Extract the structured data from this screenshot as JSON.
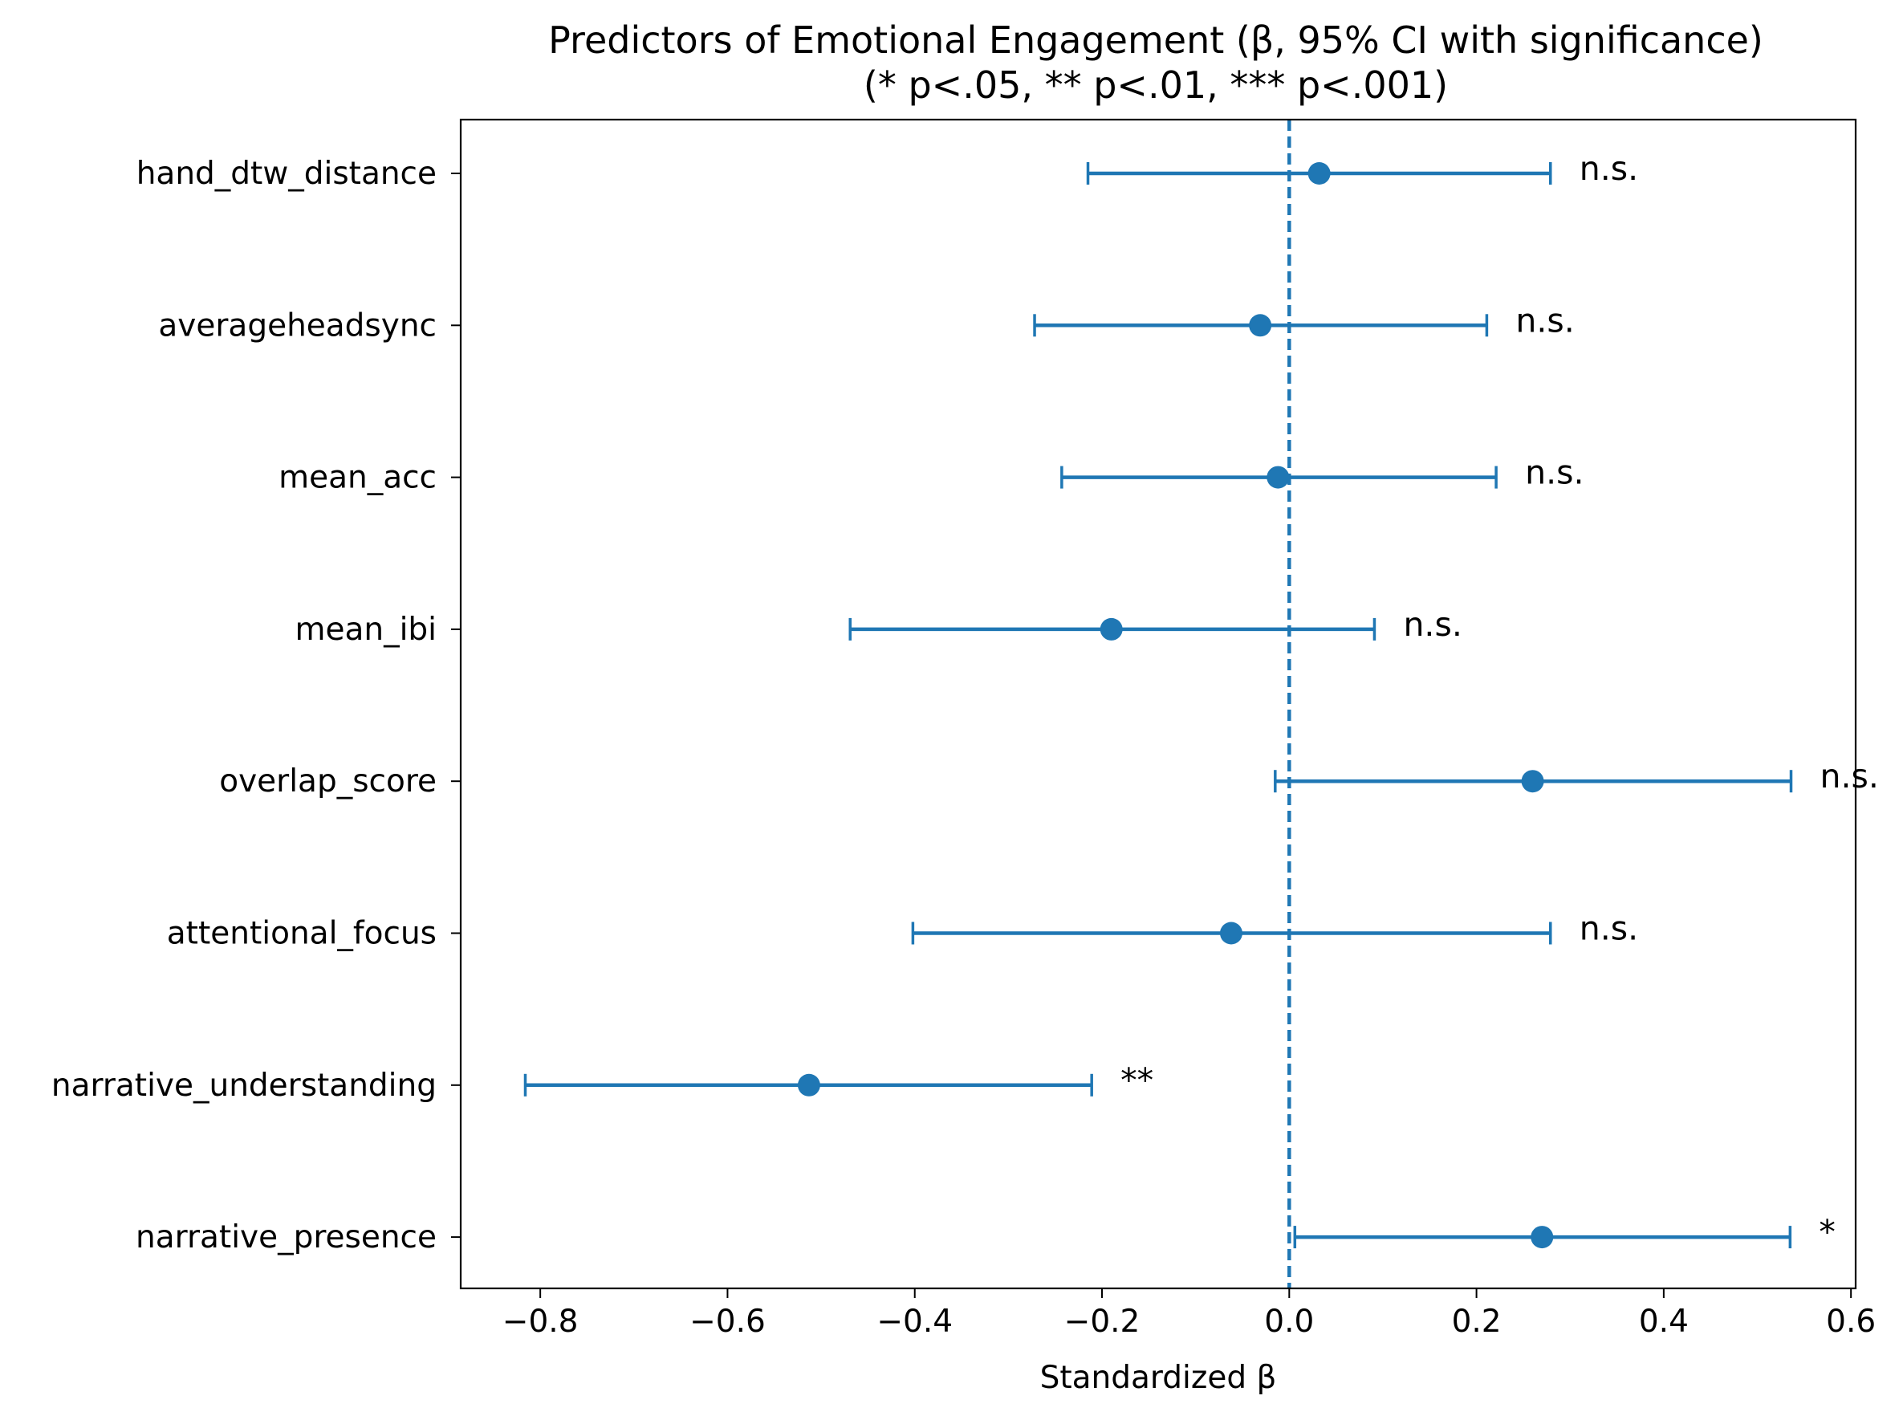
{
  "chart_data": {
    "type": "scatter",
    "subtype": "forest-plot",
    "title_line1": "Predictors of Emotional Engagement (β, 95% CI with significance)",
    "title_line2": "(* p<.05, ** p<.01, *** p<.001)",
    "xlabel": "Standardized β",
    "ylabel": "",
    "xlim": [
      -0.885,
      0.605
    ],
    "xticks": [
      -0.8,
      -0.6,
      -0.4,
      -0.2,
      0.0,
      0.2,
      0.4,
      0.6
    ],
    "xtick_labels": [
      "−0.8",
      "−0.6",
      "−0.4",
      "−0.2",
      "0.0",
      "0.2",
      "0.4",
      "0.6"
    ],
    "reference_line": 0.0,
    "grid": false,
    "color": "#1f77b4",
    "predictors": [
      {
        "label": "hand_dtw_distance",
        "beta": 0.032,
        "ci_low": -0.215,
        "ci_high": 0.279,
        "sig": "n.s."
      },
      {
        "label": "averageheadsync",
        "beta": -0.031,
        "ci_low": -0.272,
        "ci_high": 0.211,
        "sig": "n.s."
      },
      {
        "label": "mean_acc",
        "beta": -0.012,
        "ci_low": -0.243,
        "ci_high": 0.221,
        "sig": "n.s."
      },
      {
        "label": "mean_ibi",
        "beta": -0.19,
        "ci_low": -0.469,
        "ci_high": 0.091,
        "sig": "n.s."
      },
      {
        "label": "overlap_score",
        "beta": 0.26,
        "ci_low": -0.015,
        "ci_high": 0.536,
        "sig": "n.s."
      },
      {
        "label": "attentional_focus",
        "beta": -0.062,
        "ci_low": -0.402,
        "ci_high": 0.279,
        "sig": "n.s."
      },
      {
        "label": "narrative_understanding",
        "beta": -0.513,
        "ci_low": -0.816,
        "ci_high": -0.211,
        "sig": "**"
      },
      {
        "label": "narrative_presence",
        "beta": 0.27,
        "ci_low": 0.006,
        "ci_high": 0.535,
        "sig": "*"
      }
    ]
  }
}
